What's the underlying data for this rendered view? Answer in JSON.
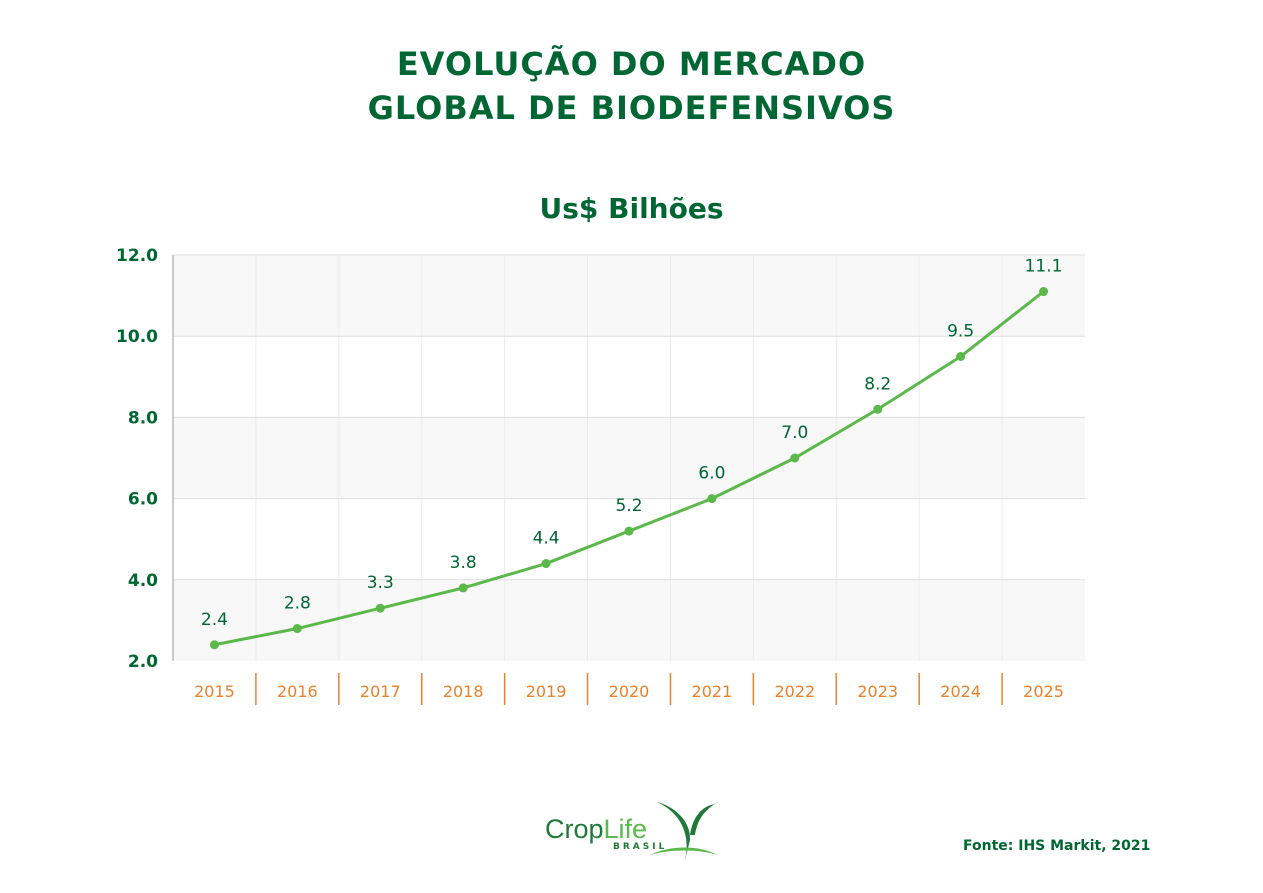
{
  "title_lines": [
    "Evolução do mercado",
    "global de biodefensivos"
  ],
  "source": "Fonte: IHS Markit, 2021",
  "logo": {
    "text_main": "Crop",
    "text_accent": "Life",
    "text_sub": "BRASIL"
  },
  "colors": {
    "title": "#006633",
    "line": "#5bb84a",
    "x_labels": "#e8812c",
    "band": "#f8f8f8"
  },
  "chart_data": {
    "type": "line",
    "title": "Us$ Bilhões",
    "xlabel": "",
    "ylabel": "",
    "categories": [
      "2015",
      "2016",
      "2017",
      "2018",
      "2019",
      "2020",
      "2021",
      "2022",
      "2023",
      "2024",
      "2025"
    ],
    "values": [
      2.4,
      2.8,
      3.3,
      3.8,
      4.4,
      5.2,
      6.0,
      7.0,
      8.2,
      9.5,
      11.1
    ],
    "data_labels": [
      "2.4",
      "2.8",
      "3.3",
      "3.8",
      "4.4",
      "5.2",
      "6.0",
      "7.0",
      "8.2",
      "9.5",
      "11.1"
    ],
    "ylim": [
      2.0,
      12.0
    ],
    "yticks": [
      "2.0",
      "4.0",
      "6.0",
      "8.0",
      "10.0",
      "12.0"
    ],
    "grid": true,
    "legend": "none"
  }
}
